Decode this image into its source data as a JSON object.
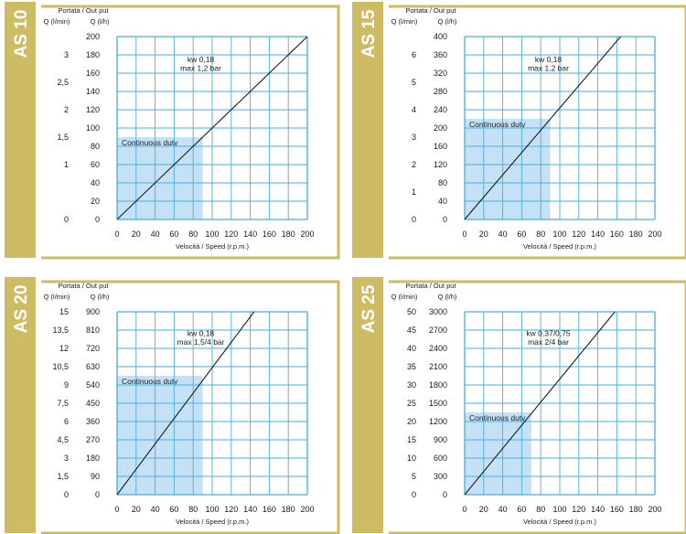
{
  "colors": {
    "tab": "#cdbc63",
    "frame": "#cdbc63",
    "grid": "#4aaee0",
    "duty_fill": "#c5e1f6",
    "line": "#1a1a1a"
  },
  "chart_data": [
    {
      "type": "line",
      "title": "AS 10",
      "header": "Portata / Out put",
      "ylabel_left": "Q (l/min)",
      "ylabel_right": "Q (l/h)",
      "xlabel": "Velocità / Speed (r.p.m.)",
      "x_ticks": [
        "0",
        "20",
        "40",
        "60",
        "80",
        "100",
        "120",
        "140",
        "160",
        "180",
        "200"
      ],
      "xlim": [
        0,
        200
      ],
      "right_ticks": [
        "0",
        "20",
        "40",
        "60",
        "80",
        "100",
        "120",
        "140",
        "160",
        "180",
        "200"
      ],
      "ylim": [
        0,
        200
      ],
      "left_ticks": [
        {
          "label": "0",
          "value": 0
        },
        {
          "label": "1",
          "value": 60
        },
        {
          "label": "1,5",
          "value": 90
        },
        {
          "label": "2",
          "value": 120
        },
        {
          "label": "2,5",
          "value": 150
        },
        {
          "label": "3",
          "value": 180
        }
      ],
      "series": [
        {
          "x": [
            0,
            200
          ],
          "y": [
            0,
            200
          ]
        }
      ],
      "annotation": {
        "lines": [
          "kw 0,18",
          "max 1,2 bar"
        ],
        "x": 88,
        "y": 172
      },
      "continuous_duty": {
        "label": "Continuous duty",
        "speed_max": 90,
        "flow_max": 90
      }
    },
    {
      "type": "line",
      "title": "AS 15",
      "header": "Portata / Out put",
      "ylabel_left": "Q (l/min)",
      "ylabel_right": "Q (l/h)",
      "xlabel": "Velocità / Speed (r.p.m.)",
      "x_ticks": [
        "0",
        "20",
        "40",
        "60",
        "80",
        "100",
        "120",
        "140",
        "160",
        "180",
        "200"
      ],
      "xlim": [
        0,
        200
      ],
      "right_ticks": [
        "0",
        "40",
        "80",
        "120",
        "160",
        "200",
        "240",
        "280",
        "320",
        "360",
        "400"
      ],
      "ylim": [
        0,
        400
      ],
      "left_ticks": [
        {
          "label": "0",
          "value": 0
        },
        {
          "label": "1",
          "value": 60
        },
        {
          "label": "2",
          "value": 120
        },
        {
          "label": "3",
          "value": 180
        },
        {
          "label": "4",
          "value": 240
        },
        {
          "label": "5",
          "value": 300
        },
        {
          "label": "6",
          "value": 360
        }
      ],
      "series": [
        {
          "x": [
            0,
            164
          ],
          "y": [
            0,
            400
          ]
        }
      ],
      "annotation": {
        "lines": [
          "kw 0,18",
          "max 1,2 bar"
        ],
        "x": 88,
        "y": 344
      },
      "continuous_duty": {
        "label": "Continuous duty",
        "speed_max": 90,
        "flow_max": 220
      }
    },
    {
      "type": "line",
      "title": "AS 20",
      "header": "Portata / Out put",
      "ylabel_left": "Q (l/min)",
      "ylabel_right": "Q (l/h)",
      "xlabel": "Velocità / Speed (r.p.m.)",
      "x_ticks": [
        "0",
        "20",
        "40",
        "60",
        "80",
        "100",
        "120",
        "140",
        "160",
        "180",
        "200"
      ],
      "xlim": [
        0,
        200
      ],
      "right_ticks": [
        "0",
        "90",
        "180",
        "270",
        "360",
        "450",
        "540",
        "630",
        "720",
        "810",
        "900"
      ],
      "ylim": [
        0,
        900
      ],
      "left_ticks": [
        {
          "label": "0",
          "value": 0
        },
        {
          "label": "1,5",
          "value": 90
        },
        {
          "label": "3",
          "value": 180
        },
        {
          "label": "4,5",
          "value": 270
        },
        {
          "label": "6",
          "value": 360
        },
        {
          "label": "7,5",
          "value": 450
        },
        {
          "label": "9",
          "value": 540
        },
        {
          "label": "10,5",
          "value": 630
        },
        {
          "label": "12",
          "value": 720
        },
        {
          "label": "13,5",
          "value": 810
        },
        {
          "label": "15",
          "value": 900
        }
      ],
      "series": [
        {
          "x": [
            0,
            144
          ],
          "y": [
            0,
            900
          ]
        }
      ],
      "annotation": {
        "lines": [
          "kw 0,18",
          "max 1,5/4 bar"
        ],
        "x": 88,
        "y": 780
      },
      "continuous_duty": {
        "label": "Continuous duty",
        "speed_max": 90,
        "flow_max": 585
      }
    },
    {
      "type": "line",
      "title": "AS 25",
      "header": "Portata / Out put",
      "ylabel_left": "Q (l/min)",
      "ylabel_right": "Q (l/h)",
      "xlabel": "Velocità / Speed (r.p.m.)",
      "x_ticks": [
        "0",
        "20",
        "40",
        "60",
        "80",
        "100",
        "120",
        "140",
        "160",
        "180",
        "200"
      ],
      "xlim": [
        0,
        200
      ],
      "right_ticks": [
        "0",
        "300",
        "600",
        "900",
        "1200",
        "1500",
        "1800",
        "2100",
        "2400",
        "2700",
        "3000"
      ],
      "ylim": [
        0,
        3000
      ],
      "left_ticks": [
        {
          "label": "0",
          "value": 0
        },
        {
          "label": "5",
          "value": 300
        },
        {
          "label": "10",
          "value": 600
        },
        {
          "label": "15",
          "value": 900
        },
        {
          "label": "20",
          "value": 1200
        },
        {
          "label": "25",
          "value": 1500
        },
        {
          "label": "30",
          "value": 1800
        },
        {
          "label": "35",
          "value": 2100
        },
        {
          "label": "40",
          "value": 2400
        },
        {
          "label": "45",
          "value": 2700
        },
        {
          "label": "50",
          "value": 3000
        }
      ],
      "series": [
        {
          "x": [
            0,
            158
          ],
          "y": [
            0,
            3000
          ]
        }
      ],
      "annotation": {
        "lines": [
          "kw 0,37/0,75",
          "max 2/4 bar"
        ],
        "x": 88,
        "y": 2600
      },
      "continuous_duty": {
        "label": "Continuous duty",
        "speed_max": 70,
        "flow_max": 1350
      }
    }
  ]
}
